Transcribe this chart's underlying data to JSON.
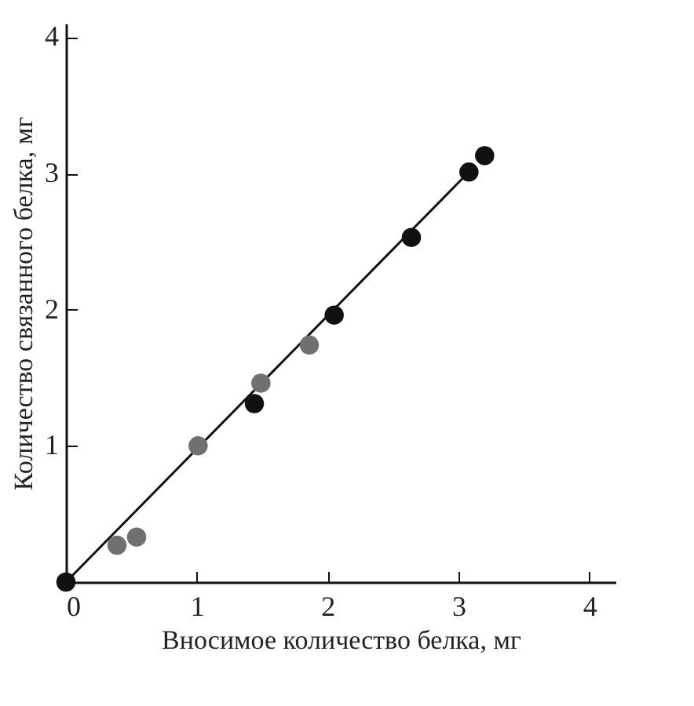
{
  "chart_data": {
    "type": "scatter",
    "xlabel": "Вносимое количество белка, мг",
    "ylabel": "Количество связанного белка, мг",
    "xlim": [
      0,
      4.2
    ],
    "ylim": [
      0,
      4.1
    ],
    "xticks": [
      0,
      1,
      2,
      3,
      4
    ],
    "yticks": [
      {
        "value": 0,
        "label": null
      },
      1,
      2,
      3,
      4
    ],
    "grid": false,
    "marker": "circle",
    "series": [
      {
        "color": "#111111",
        "x": [
          0,
          1.44,
          2.05,
          2.64,
          3.08,
          3.2
        ],
        "values": [
          0,
          1.31,
          1.96,
          2.53,
          3.01,
          3.13
        ]
      },
      {
        "color": "#707070",
        "x": [
          0.39,
          0.54,
          1.01,
          1.49,
          1.86
        ],
        "values": [
          0.27,
          0.33,
          1.0,
          1.46,
          1.74
        ]
      },
      {
        "type": "line",
        "marker": "none",
        "color": "#111111",
        "x": [
          0,
          3.1
        ],
        "values": [
          0,
          3.03
        ]
      }
    ]
  }
}
